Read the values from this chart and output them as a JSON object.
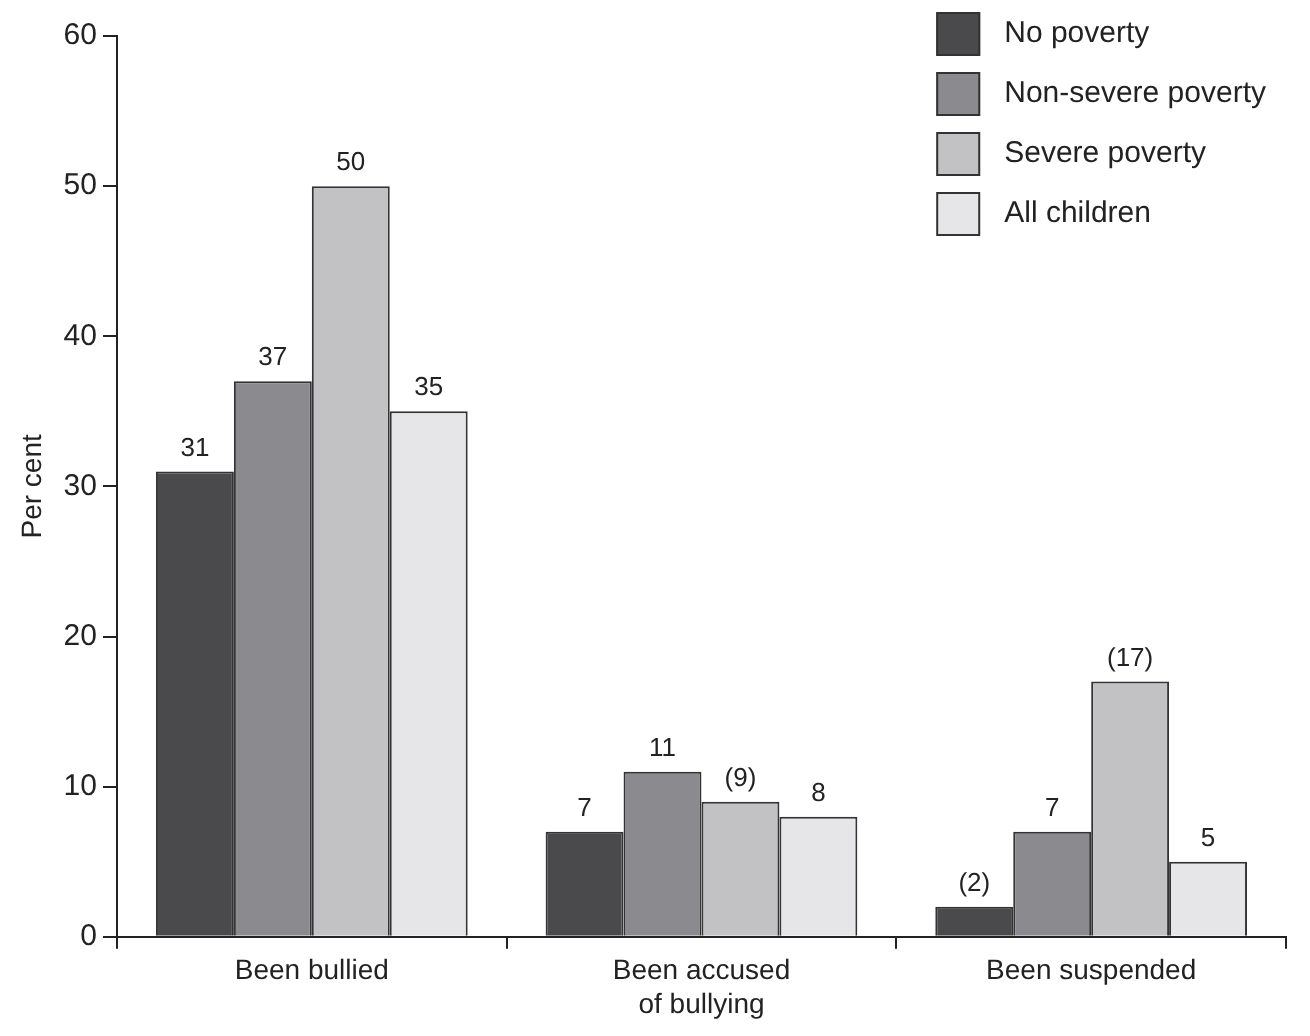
{
  "chart_data": {
    "type": "bar",
    "ylabel": "Per cent",
    "categories": [
      "Been bullied",
      "Been accused\nof bullying",
      "Been suspended"
    ],
    "series": [
      {
        "name": "No poverty",
        "color": "#4a4a4c",
        "values": [
          31,
          7,
          2
        ],
        "value_labels": [
          "31",
          "7",
          "(2)"
        ]
      },
      {
        "name": "Non-severe poverty",
        "color": "#8b8b8f",
        "values": [
          37,
          11,
          7
        ],
        "value_labels": [
          "37",
          "11",
          "7"
        ]
      },
      {
        "name": "Severe poverty",
        "color": "#c2c2c4",
        "values": [
          50,
          9,
          17
        ],
        "value_labels": [
          "50",
          "(9)",
          "(17)"
        ]
      },
      {
        "name": "All children",
        "color": "#e6e6e8",
        "values": [
          35,
          8,
          5
        ],
        "value_labels": [
          "35",
          "8",
          "5"
        ]
      }
    ],
    "ylim": [
      0,
      60
    ],
    "yticks": [
      0,
      10,
      20,
      30,
      40,
      50,
      60
    ],
    "grid": false,
    "legend": "top right"
  }
}
